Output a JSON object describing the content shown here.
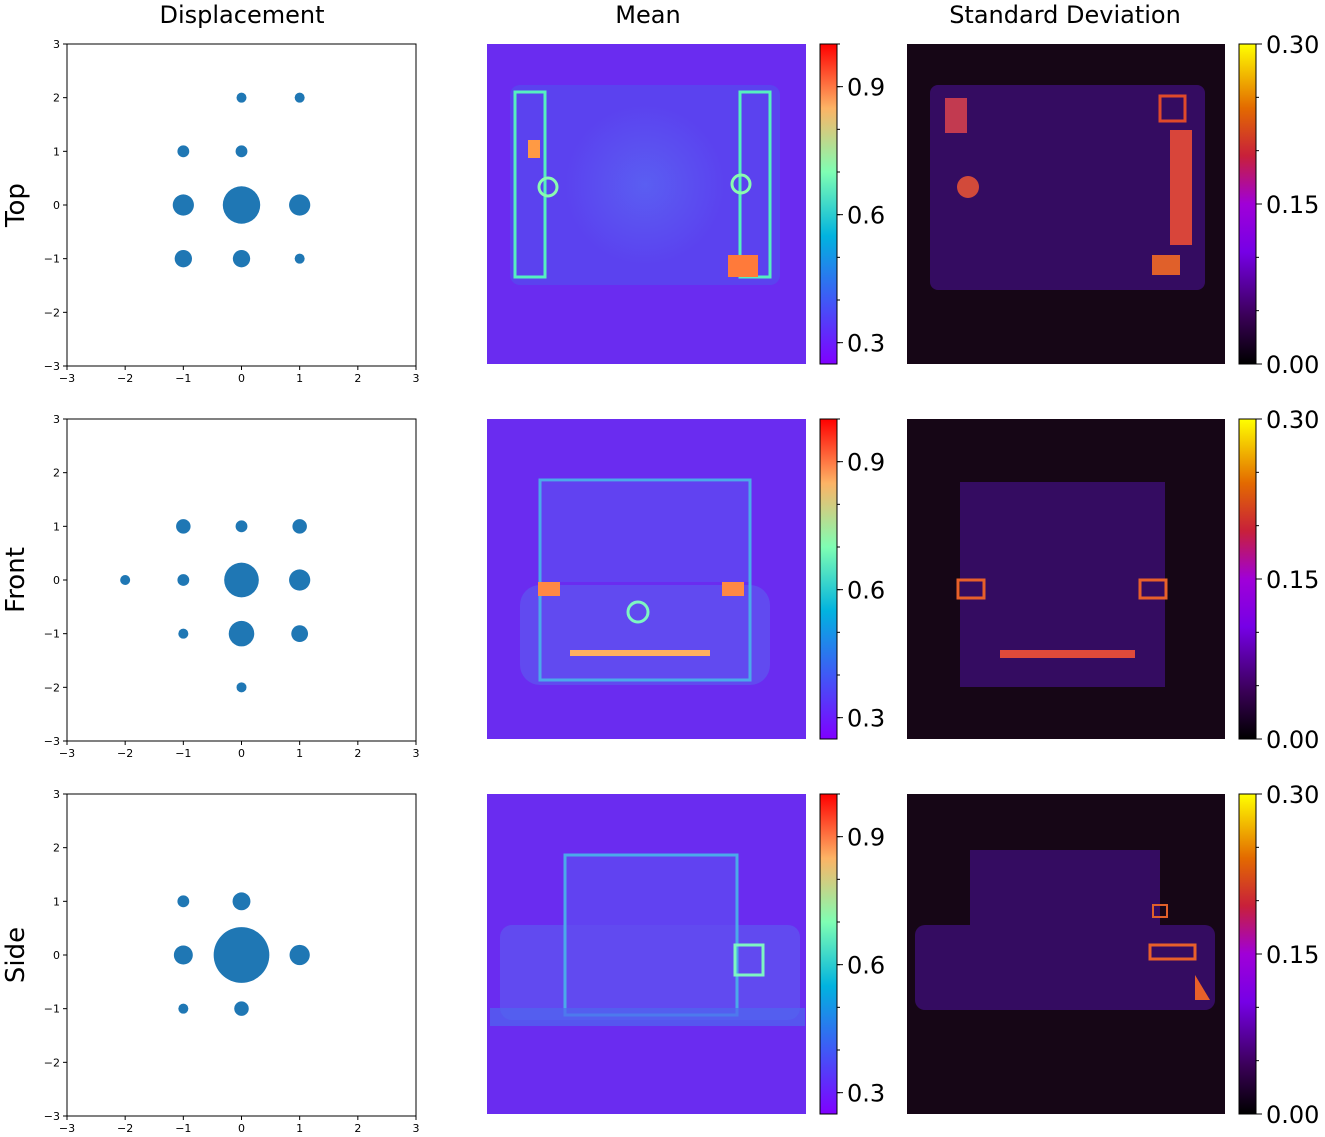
{
  "column_titles": [
    "Displacement",
    "Mean",
    "Standard Deviation"
  ],
  "row_titles": [
    "Top",
    "Front",
    "Side"
  ],
  "colors": {
    "marker": "#1f77b4",
    "mean_colormap": "rainbow",
    "std_colormap": "gnuplot",
    "mean_background": "#6a2cf0",
    "std_background": "#160616"
  },
  "chart_data": [
    {
      "type": "scatter",
      "name": "Top",
      "title": "",
      "xlim": [
        -3,
        3
      ],
      "ylim": [
        -3,
        3
      ],
      "xticks": [
        "−3",
        "−2",
        "−1",
        "0",
        "1",
        "2",
        "3"
      ],
      "yticks": [
        "−3",
        "−2",
        "−1",
        "0",
        "1",
        "2",
        "3"
      ],
      "points": [
        {
          "x": 0,
          "y": 2,
          "size": 1
        },
        {
          "x": 1,
          "y": 2,
          "size": 1
        },
        {
          "x": -1,
          "y": 1,
          "size": 1.4
        },
        {
          "x": 0,
          "y": 1,
          "size": 1.4
        },
        {
          "x": -1,
          "y": 0,
          "size": 4.5
        },
        {
          "x": 0,
          "y": 0,
          "size": 14
        },
        {
          "x": 1,
          "y": 0,
          "size": 4.5
        },
        {
          "x": -1,
          "y": -1,
          "size": 3
        },
        {
          "x": 0,
          "y": -1,
          "size": 3
        },
        {
          "x": 1,
          "y": -1,
          "size": 1
        }
      ]
    },
    {
      "type": "scatter",
      "name": "Front",
      "title": "",
      "xlim": [
        -3,
        3
      ],
      "ylim": [
        -3,
        3
      ],
      "xticks": [
        "−3",
        "−2",
        "−1",
        "0",
        "1",
        "2",
        "3"
      ],
      "yticks": [
        "−3",
        "−2",
        "−1",
        "0",
        "1",
        "2",
        "3"
      ],
      "points": [
        {
          "x": -1,
          "y": 1,
          "size": 2.1
        },
        {
          "x": 0,
          "y": 1,
          "size": 1.4
        },
        {
          "x": 1,
          "y": 1,
          "size": 2.1
        },
        {
          "x": -2,
          "y": 0,
          "size": 1
        },
        {
          "x": -1,
          "y": 0,
          "size": 1.4
        },
        {
          "x": 0,
          "y": 0,
          "size": 12
        },
        {
          "x": 1,
          "y": 0,
          "size": 4.5
        },
        {
          "x": -1,
          "y": -1,
          "size": 1
        },
        {
          "x": 0,
          "y": -1,
          "size": 6.5
        },
        {
          "x": 1,
          "y": -1,
          "size": 2.8
        },
        {
          "x": 0,
          "y": -2,
          "size": 1
        }
      ]
    },
    {
      "type": "scatter",
      "name": "Side",
      "title": "",
      "xlim": [
        -3,
        3
      ],
      "ylim": [
        -3,
        3
      ],
      "xticks": [
        "−3",
        "−2",
        "−1",
        "0",
        "1",
        "2",
        "3"
      ],
      "yticks": [
        "−3",
        "−2",
        "−1",
        "0",
        "1",
        "2",
        "3"
      ],
      "points": [
        {
          "x": -1,
          "y": 1,
          "size": 1.4
        },
        {
          "x": 0,
          "y": 1,
          "size": 3.2
        },
        {
          "x": -1,
          "y": 0,
          "size": 3.6
        },
        {
          "x": 0,
          "y": 0,
          "size": 31
        },
        {
          "x": 1,
          "y": 0,
          "size": 4.1
        },
        {
          "x": -1,
          "y": -1,
          "size": 1
        },
        {
          "x": 0,
          "y": -1,
          "size": 2.1
        }
      ]
    }
  ],
  "mean_colorbar": {
    "range": [
      0.25,
      1.0
    ],
    "ticks": [
      "0.3",
      "0.6",
      "0.9"
    ],
    "tick_values": [
      0.3,
      0.6,
      0.9
    ]
  },
  "std_colorbar": {
    "range": [
      0.0,
      0.3
    ],
    "ticks": [
      "0.00",
      "0.15",
      "0.30"
    ],
    "tick_values": [
      0.0,
      0.15,
      0.3
    ]
  }
}
